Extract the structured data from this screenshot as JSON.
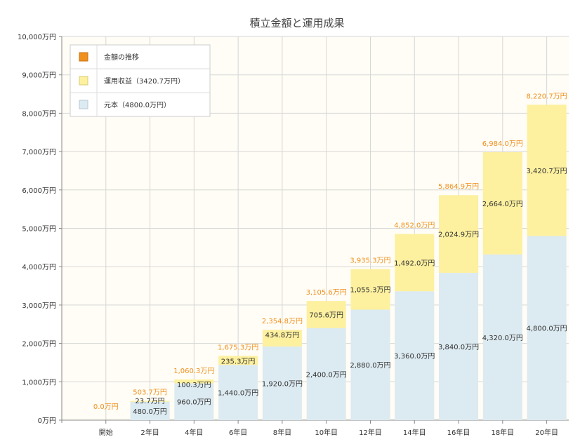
{
  "chart_data": {
    "type": "bar",
    "stacked": true,
    "title": "積立金額と運用成果",
    "categories": [
      "開始",
      "2年目",
      "4年目",
      "6年目",
      "8年目",
      "10年目",
      "12年目",
      "14年目",
      "16年目",
      "18年目",
      "20年目"
    ],
    "series": [
      {
        "name": "元本（4800.0万円）",
        "color": "#dceaf1",
        "values": [
          0,
          480,
          960,
          1440,
          1920,
          2400,
          2880,
          3360,
          3840,
          4320,
          4800
        ],
        "labels": [
          "",
          "480.0万円",
          "960.0万円",
          "1,440.0万円",
          "1,920.0万円",
          "2,400.0万円",
          "2,880.0万円",
          "3,360.0万円",
          "3,840.0万円",
          "4,320.0万円",
          "4,800.0万円"
        ]
      },
      {
        "name": "運用収益（3420.7万円）",
        "color": "#fdf09f",
        "values": [
          0,
          23.7,
          100.3,
          235.3,
          434.8,
          705.6,
          1055.3,
          1492.0,
          2024.9,
          2664.0,
          3420.7
        ],
        "labels": [
          "",
          "23.7万円",
          "100.3万円",
          "235.3万円",
          "434.8万円",
          "705.6万円",
          "1,055.3万円",
          "1,492.0万円",
          "2,024.9万円",
          "2,664.0万円",
          "3,420.7万円"
        ]
      }
    ],
    "totals": {
      "name": "金額の推移",
      "color": "#f0901e",
      "values": [
        0,
        503.7,
        1060.3,
        1675.3,
        2354.8,
        3105.6,
        3935.3,
        4852.0,
        5864.9,
        6984.0,
        8220.7
      ],
      "labels": [
        "0.0万円",
        "503.7万円",
        "1,060.3万円",
        "1,675.3万円",
        "2,354.8万円",
        "3,105.6万円",
        "3,935.3万円",
        "4,852.0万円",
        "5,864.9万円",
        "6,984.0万円",
        "8,220.7万円"
      ]
    },
    "ylim": [
      0,
      10000
    ],
    "yticks": [
      0,
      1000,
      2000,
      3000,
      4000,
      5000,
      6000,
      7000,
      8000,
      9000,
      10000
    ],
    "ytick_labels": [
      "0万円",
      "1,000万円",
      "2,000万円",
      "3,000万円",
      "4,000万円",
      "5,000万円",
      "6,000万円",
      "7,000万円",
      "8,000万円",
      "9,000万円",
      "10,000万円"
    ],
    "grid": true,
    "legend_position": "top-left",
    "colors": {
      "plot_background": "#fffdf5",
      "grid": "#d6d6d6",
      "axis": "#888888"
    }
  }
}
